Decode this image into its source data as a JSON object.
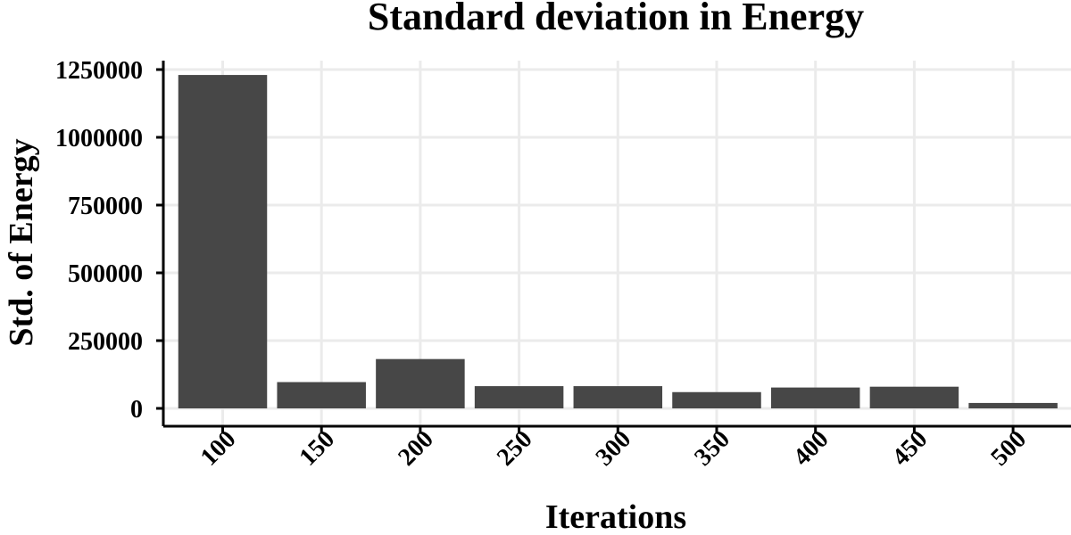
{
  "chart_data": {
    "type": "bar",
    "title": "Standard deviation in Energy",
    "xlabel": "Iterations",
    "ylabel": "Std. of Energy",
    "categories": [
      "100",
      "150",
      "200",
      "250",
      "300",
      "350",
      "400",
      "450",
      "500"
    ],
    "values": [
      1230000,
      97000,
      182000,
      82000,
      82000,
      60000,
      77000,
      80000,
      20000
    ],
    "ylim": [
      0,
      1250000
    ],
    "yticks": [
      0,
      250000,
      500000,
      750000,
      1000000,
      1250000
    ],
    "ytick_labels": [
      "0",
      "250000",
      "500000",
      "750000",
      "1000000",
      "1250000"
    ],
    "grid": true,
    "bar_color": "#474747",
    "grid_color": "#ebebeb",
    "background": "#ffffff"
  }
}
